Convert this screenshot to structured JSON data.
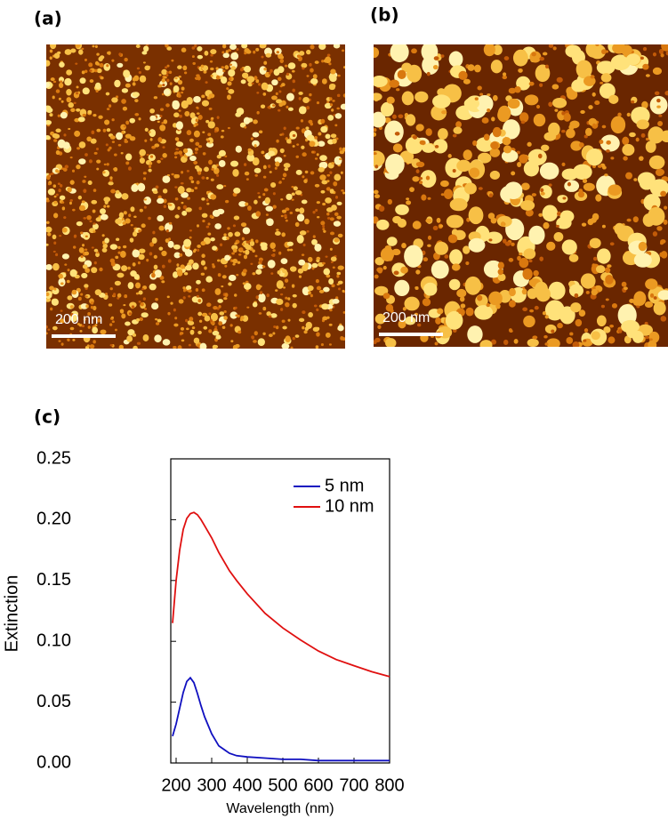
{
  "panels": [
    {
      "label": "(a)",
      "scale_bar": "200 nm"
    },
    {
      "label": "(b)",
      "scale_bar": "200 nm"
    }
  ],
  "chart_data": {
    "type": "line",
    "panel_label": "(c)",
    "xlabel": "Wavelength (nm)",
    "ylabel": "Extinction",
    "x": [
      190,
      200,
      210,
      220,
      230,
      240,
      250,
      260,
      270,
      280,
      300,
      320,
      350,
      370,
      400,
      450,
      500,
      550,
      600,
      650,
      700,
      750,
      800
    ],
    "series": [
      {
        "name": "5 nm",
        "color": "#1010c0",
        "values": [
          0.022,
          0.032,
          0.045,
          0.058,
          0.067,
          0.07,
          0.066,
          0.057,
          0.047,
          0.038,
          0.024,
          0.014,
          0.008,
          0.006,
          0.005,
          0.004,
          0.003,
          0.003,
          0.002,
          0.002,
          0.002,
          0.002,
          0.002
        ]
      },
      {
        "name": "10 nm",
        "color": "#e01010",
        "values": [
          0.115,
          0.15,
          0.175,
          0.192,
          0.201,
          0.205,
          0.206,
          0.204,
          0.2,
          0.195,
          0.185,
          0.173,
          0.158,
          0.15,
          0.139,
          0.123,
          0.111,
          0.101,
          0.092,
          0.085,
          0.08,
          0.075,
          0.071
        ]
      }
    ],
    "xlim": [
      185,
      800
    ],
    "xticks": [
      200,
      300,
      400,
      500,
      600,
      700,
      800
    ],
    "ylim": [
      0,
      0.25
    ],
    "yticks": [
      {
        "value": 0,
        "label": "0.00"
      },
      {
        "value": 0.05,
        "label": "0.05"
      },
      {
        "value": 0.1,
        "label": "0.10"
      },
      {
        "value": 0.15,
        "label": "0.15"
      },
      {
        "value": 0.2,
        "label": "0.20"
      },
      {
        "value": 0.25,
        "label": "0.25"
      }
    ],
    "legend": "upper right",
    "grid": false
  }
}
